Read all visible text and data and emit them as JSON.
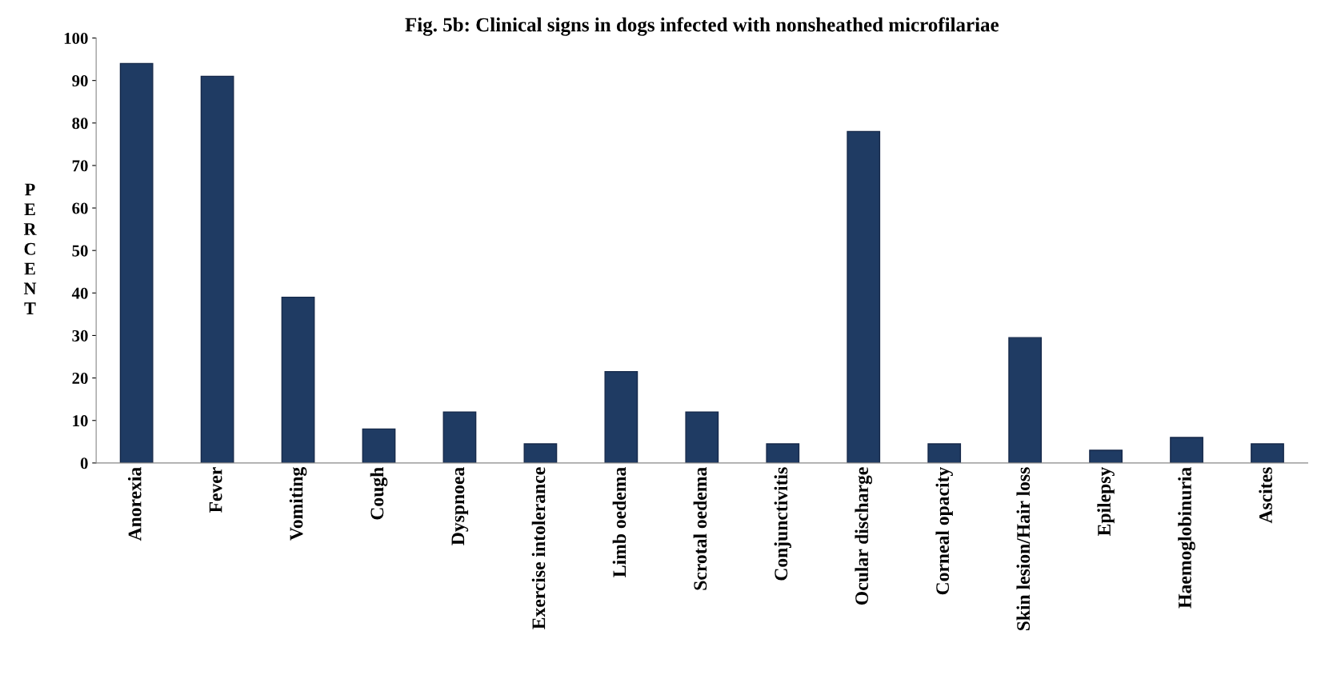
{
  "chart_data": {
    "type": "bar",
    "title": "Fig. 5b: Clinical signs in dogs infected with nonsheathed microfilariae",
    "ylabel": "PERCENT",
    "categories": [
      "Anorexia",
      "Fever",
      "Vomiting",
      "Cough",
      "Dyspnoea",
      "Exercise intolerance",
      "Limb oedema",
      "Scrotal oedema",
      "Conjunctivitis",
      "Ocular discharge",
      "Corneal opacity",
      "Skin lesion/Hair loss",
      "Epilepsy",
      "Haemoglobinuria",
      "Ascites"
    ],
    "values": [
      94,
      91,
      39,
      8,
      12,
      4.5,
      21.5,
      12,
      4.5,
      78,
      4.5,
      29.5,
      3,
      6,
      4.5
    ],
    "color": "#1f3b63",
    "ylim": [
      0,
      100
    ],
    "yticks": [
      0,
      10,
      20,
      30,
      40,
      50,
      60,
      70,
      80,
      90,
      100
    ],
    "grid": false
  }
}
